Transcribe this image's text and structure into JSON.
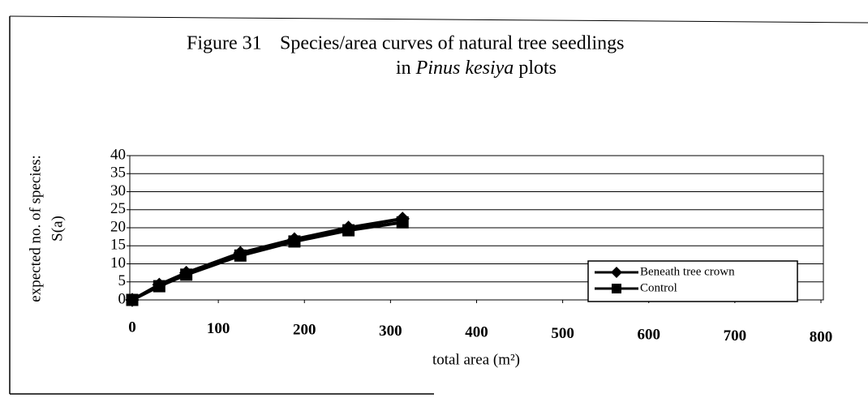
{
  "chart_data": {
    "type": "line",
    "title": {
      "figure": "Figure 31",
      "line1": "Species/area curves of natural tree seedlings",
      "line2_pre": "in",
      "line2_italic": "Pinus kesiya",
      "line2_post": "plots"
    },
    "x_label": "total area (m²)",
    "y_label": [
      "expected no. of species:",
      "S(a)"
    ],
    "x": [
      0,
      31.4,
      62.8,
      125.6,
      188.4,
      251.2,
      314
    ],
    "series": [
      {
        "name": "Beneath tree crown",
        "color": "#000000",
        "marker": "diamond",
        "values": [
          0,
          4.2,
          7.5,
          13,
          16.8,
          20,
          22.5
        ]
      },
      {
        "name": "Control",
        "color": "#000000",
        "marker": "square",
        "values": [
          0,
          3.8,
          7,
          12.3,
          16.2,
          19.3,
          21.5
        ]
      }
    ],
    "xlim": [
      0,
      800
    ],
    "xticks": [
      0,
      100,
      200,
      300,
      400,
      500,
      600,
      700,
      800
    ],
    "ylim": [
      0,
      40
    ],
    "yticks": [
      0,
      5,
      10,
      15,
      20,
      25,
      30,
      35,
      40
    ],
    "grid": true,
    "legend": "lower right"
  }
}
